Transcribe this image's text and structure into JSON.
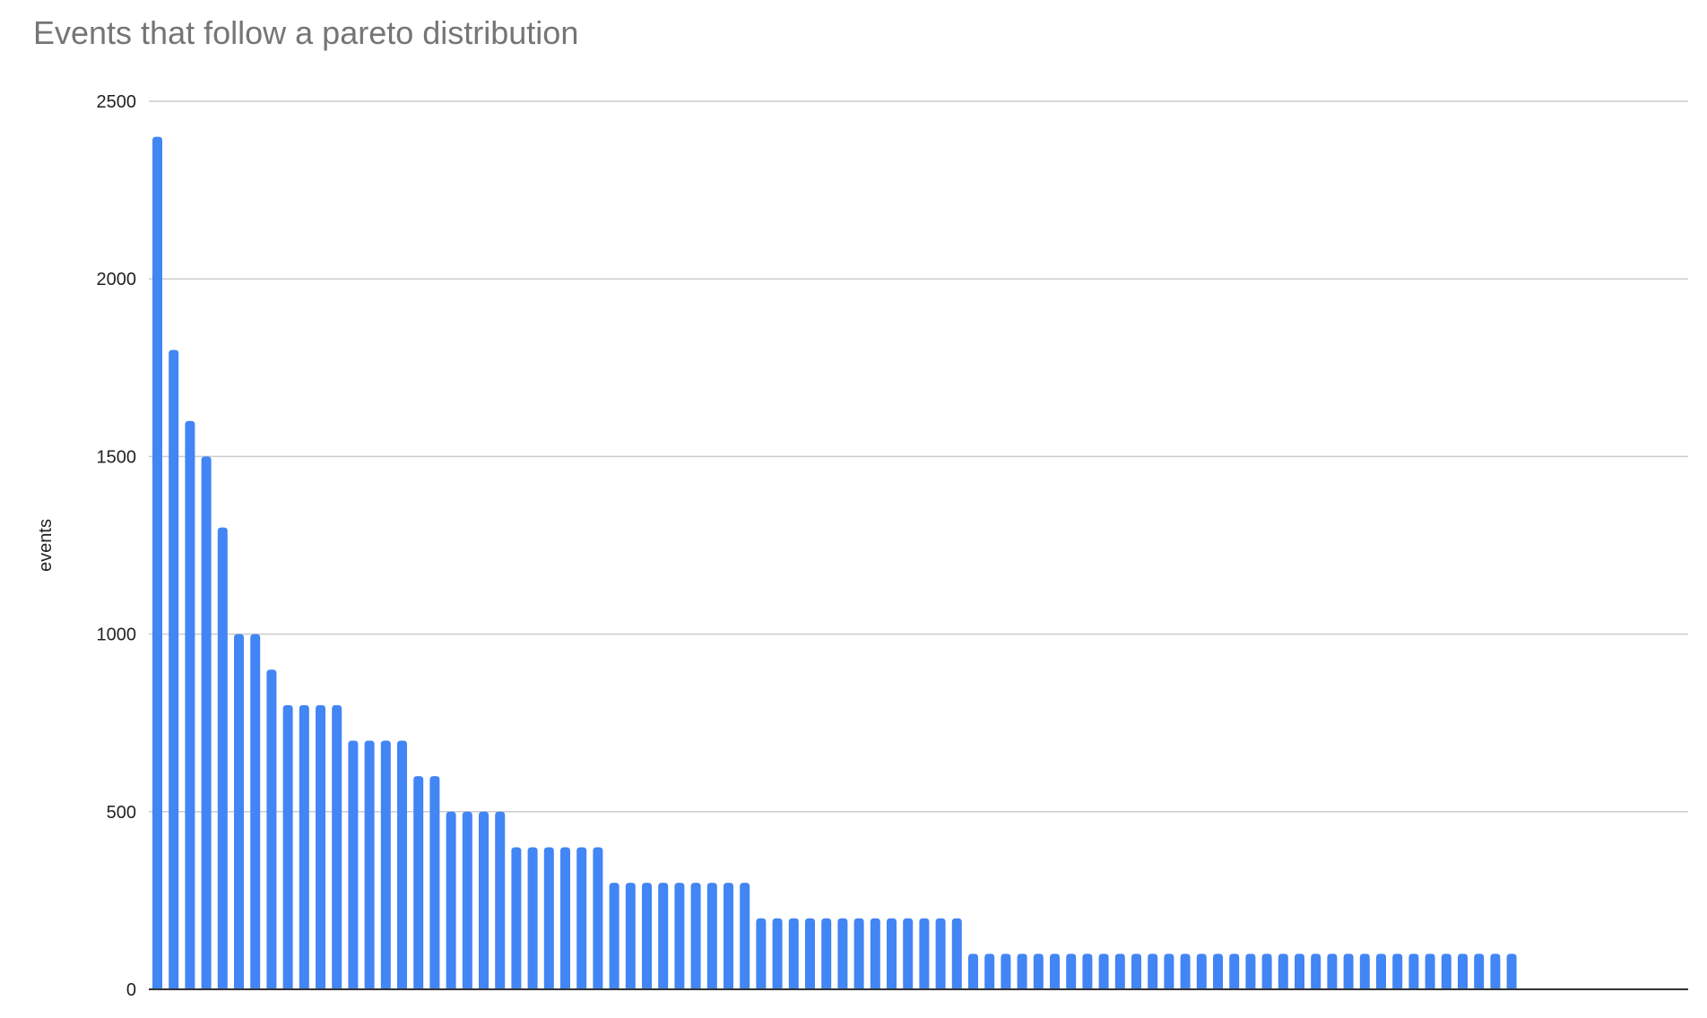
{
  "chart_data": {
    "type": "bar",
    "title": "Events that follow a pareto distribution",
    "xlabel": "",
    "ylabel": "events",
    "ylim": [
      0,
      2500
    ],
    "yticks": [
      0,
      500,
      1000,
      1500,
      2000,
      2500
    ],
    "grid": true,
    "legend": "none",
    "bar_color": "#4285f4",
    "values": [
      2400,
      1800,
      1600,
      1500,
      1300,
      1000,
      1000,
      900,
      800,
      800,
      800,
      800,
      700,
      700,
      700,
      700,
      600,
      600,
      500,
      500,
      500,
      500,
      400,
      400,
      400,
      400,
      400,
      400,
      300,
      300,
      300,
      300,
      300,
      300,
      300,
      300,
      300,
      200,
      200,
      200,
      200,
      200,
      200,
      200,
      200,
      200,
      200,
      200,
      200,
      200,
      100,
      100,
      100,
      100,
      100,
      100,
      100,
      100,
      100,
      100,
      100,
      100,
      100,
      100,
      100,
      100,
      100,
      100,
      100,
      100,
      100,
      100,
      100,
      100,
      100,
      100,
      100,
      100,
      100,
      100,
      100,
      100,
      100,
      100
    ]
  }
}
